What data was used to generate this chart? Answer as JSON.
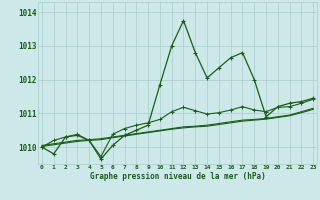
{
  "title": "Graphe pression niveau de la mer (hPa)",
  "hours": [
    0,
    1,
    2,
    3,
    4,
    5,
    6,
    7,
    8,
    9,
    10,
    11,
    12,
    13,
    14,
    15,
    16,
    17,
    18,
    19,
    20,
    21,
    22,
    23
  ],
  "ylim": [
    1009.5,
    1014.3
  ],
  "yticks": [
    1010,
    1011,
    1012,
    1013,
    1014
  ],
  "background_color": "#cce8e8",
  "grid_color": "#aacccc",
  "line_color": "#1a5c1a",
  "line_main": [
    1010.0,
    1009.8,
    1010.3,
    1010.35,
    1010.2,
    1009.65,
    1010.05,
    1010.35,
    1010.5,
    1010.65,
    1011.85,
    1013.0,
    1013.75,
    1012.8,
    1012.05,
    1012.35,
    1012.65,
    1012.8,
    1012.0,
    1010.9,
    1011.2,
    1011.3,
    1011.35,
    1011.45
  ],
  "line_smooth": [
    1010.0,
    1010.2,
    1010.3,
    1010.38,
    1010.2,
    1009.72,
    1010.38,
    1010.55,
    1010.65,
    1010.72,
    1010.82,
    1011.05,
    1011.18,
    1011.08,
    1010.98,
    1011.02,
    1011.1,
    1011.2,
    1011.1,
    1011.05,
    1011.18,
    1011.2,
    1011.3,
    1011.42
  ],
  "line_trend1": [
    1010.05,
    1010.1,
    1010.15,
    1010.2,
    1010.22,
    1010.25,
    1010.3,
    1010.35,
    1010.4,
    1010.45,
    1010.5,
    1010.55,
    1010.6,
    1010.62,
    1010.65,
    1010.7,
    1010.75,
    1010.8,
    1010.82,
    1010.85,
    1010.9,
    1010.95,
    1011.05,
    1011.15
  ],
  "line_trend2": [
    1010.02,
    1010.07,
    1010.12,
    1010.17,
    1010.2,
    1010.22,
    1010.28,
    1010.33,
    1010.38,
    1010.43,
    1010.48,
    1010.53,
    1010.57,
    1010.6,
    1010.62,
    1010.67,
    1010.72,
    1010.77,
    1010.8,
    1010.83,
    1010.88,
    1010.93,
    1011.02,
    1011.12
  ]
}
